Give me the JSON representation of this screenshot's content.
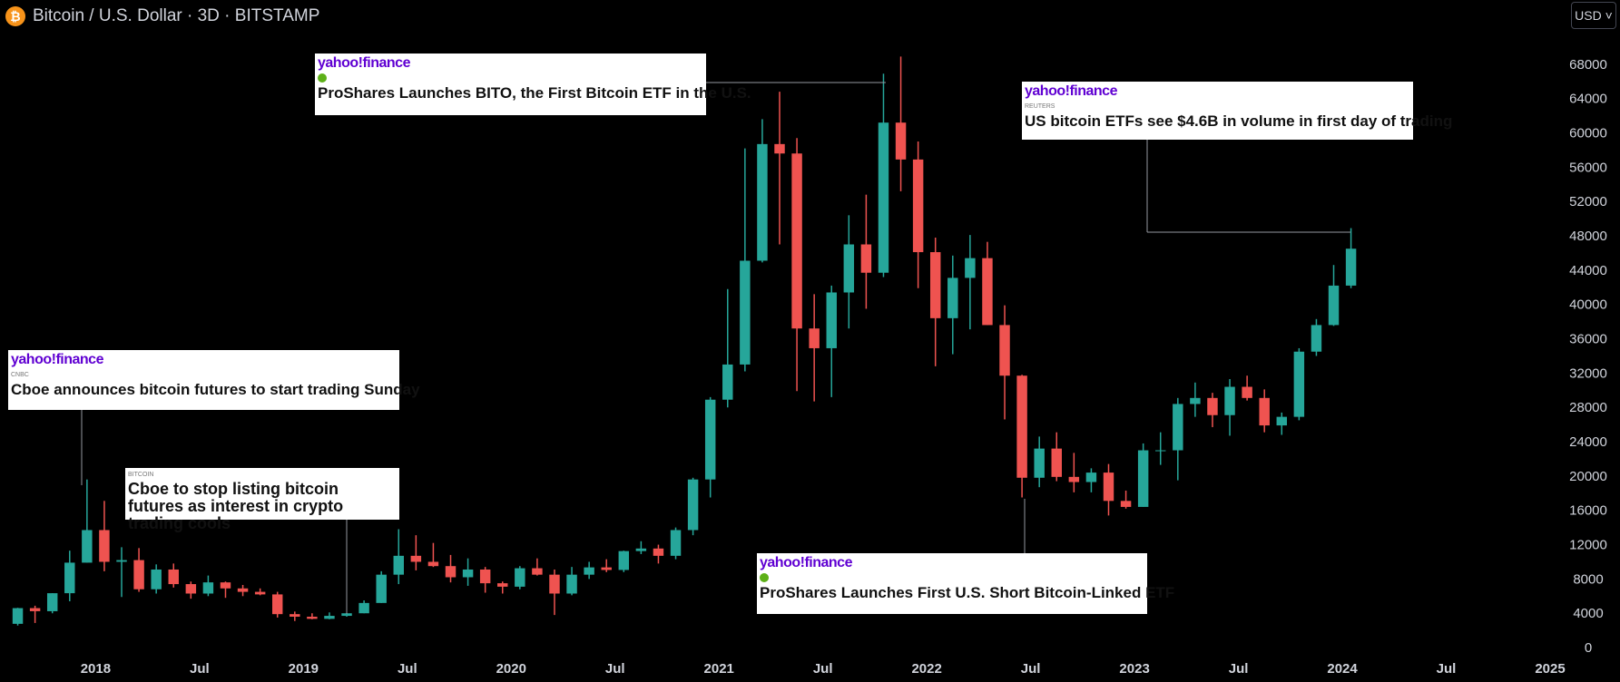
{
  "header": {
    "title": "Bitcoin / U.S. Dollar · 3D · BITSTAMP",
    "currency": "USD"
  },
  "chart_data": {
    "type": "candlestick",
    "x": [
      "2017-08",
      "2017-09",
      "2017-10",
      "2017-11",
      "2017-12",
      "2018-01",
      "2018-02",
      "2018-03",
      "2018-04",
      "2018-05",
      "2018-06",
      "2018-07",
      "2018-08",
      "2018-09",
      "2018-10",
      "2018-11",
      "2018-12",
      "2019-01",
      "2019-02",
      "2019-03",
      "2019-04",
      "2019-05",
      "2019-06",
      "2019-07",
      "2019-08",
      "2019-09",
      "2019-10",
      "2019-11",
      "2019-12",
      "2020-01",
      "2020-02",
      "2020-03",
      "2020-04",
      "2020-05",
      "2020-06",
      "2020-07",
      "2020-08",
      "2020-09",
      "2020-10",
      "2020-11",
      "2020-12",
      "2021-01",
      "2021-02",
      "2021-03",
      "2021-04",
      "2021-05",
      "2021-06",
      "2021-07",
      "2021-08",
      "2021-09",
      "2021-10",
      "2021-11",
      "2021-12",
      "2022-01",
      "2022-02",
      "2022-03",
      "2022-04",
      "2022-05",
      "2022-06",
      "2022-07",
      "2022-08",
      "2022-09",
      "2022-10",
      "2022-11",
      "2022-12",
      "2023-01",
      "2023-02",
      "2023-03",
      "2023-04",
      "2023-05",
      "2023-06",
      "2023-07",
      "2023-08",
      "2023-09",
      "2023-10",
      "2023-11",
      "2023-12",
      "2024-01"
    ],
    "open": [
      2870,
      4700,
      4340,
      6440,
      10000,
      13800,
      10100,
      10300,
      6900,
      9200,
      7500,
      6400,
      7700,
      7000,
      6600,
      6300,
      4000,
      3700,
      3450,
      3800,
      4100,
      5300,
      8600,
      10800,
      10100,
      9600,
      8300,
      9200,
      7600,
      7200,
      9350,
      8600,
      6400,
      8600,
      9450,
      9150,
      11350,
      11650,
      10800,
      13800,
      19700,
      29000,
      33100,
      45200,
      58800,
      57700,
      37300,
      35000,
      41500,
      47100,
      43800,
      61300,
      57000,
      46200,
      38500,
      43200,
      45500,
      37700,
      31800,
      19900,
      23300,
      20000,
      19400,
      20500,
      17200,
      16500,
      23100,
      23100,
      28500,
      29200,
      27200,
      30500,
      29200,
      26000,
      27000,
      34600,
      37700,
      42300
    ],
    "high": [
      4740,
      4980,
      6450,
      11400,
      19700,
      17200,
      11800,
      11700,
      9800,
      9900,
      7800,
      8500,
      7800,
      7400,
      7000,
      6600,
      4300,
      4100,
      4200,
      4100,
      5600,
      9000,
      13900,
      13200,
      12300,
      10900,
      10500,
      9500,
      7800,
      9600,
      10500,
      9200,
      9500,
      10100,
      10400,
      11400,
      12500,
      12100,
      14100,
      19900,
      29300,
      41900,
      58300,
      61700,
      64900,
      59500,
      41300,
      42300,
      50500,
      52900,
      67000,
      69000,
      59100,
      47900,
      45800,
      48200,
      47400,
      40000,
      31900,
      24700,
      25200,
      22800,
      21000,
      21500,
      18400,
      23900,
      25200,
      29200,
      31000,
      29800,
      31400,
      31800,
      30200,
      27500,
      35000,
      38400,
      44700,
      49000
    ],
    "low": [
      2670,
      2970,
      4100,
      5500,
      10000,
      9000,
      6000,
      6600,
      6400,
      7100,
      5800,
      6100,
      5900,
      6100,
      6200,
      3600,
      3200,
      3400,
      3400,
      3700,
      4100,
      5300,
      7500,
      9100,
      9500,
      7700,
      7300,
      6500,
      6400,
      6900,
      8500,
      3900,
      6200,
      8100,
      8900,
      8900,
      11000,
      9900,
      10400,
      13200,
      17600,
      28100,
      32300,
      45000,
      47100,
      30000,
      28800,
      29300,
      37300,
      39600,
      43300,
      53300,
      42000,
      32900,
      34300,
      37200,
      37700,
      26700,
      17600,
      18800,
      19500,
      18200,
      18200,
      15500,
      16300,
      16500,
      21400,
      19600,
      27000,
      25800,
      24800,
      28900,
      25200,
      24900,
      26600,
      34100,
      37600,
      42000
    ],
    "close": [
      4700,
      4340,
      6440,
      10000,
      13800,
      10100,
      10300,
      6900,
      9200,
      7500,
      6400,
      7700,
      7000,
      6600,
      6300,
      4000,
      3700,
      3450,
      3800,
      4100,
      5300,
      8600,
      10800,
      10100,
      9600,
      8300,
      9200,
      7600,
      7200,
      9350,
      8600,
      6400,
      8600,
      9450,
      9150,
      11350,
      11650,
      10800,
      13800,
      19700,
      29000,
      33100,
      45200,
      58800,
      57700,
      37300,
      35000,
      41500,
      47100,
      43800,
      61300,
      57000,
      46200,
      38500,
      43200,
      45500,
      37700,
      31800,
      19900,
      23300,
      20000,
      19400,
      20500,
      17200,
      16500,
      23100,
      23100,
      28500,
      29200,
      27200,
      30500,
      29200,
      26000,
      27000,
      34600,
      37700,
      42300,
      46600
    ],
    "up_color": "#26a69a",
    "down_color": "#ef5350",
    "xlim": [
      "2017-08",
      "2025-01"
    ],
    "xticks": [
      {
        "value": "2018-01",
        "label": "2018"
      },
      {
        "value": "2018-07",
        "label": "Jul"
      },
      {
        "value": "2019-01",
        "label": "2019"
      },
      {
        "value": "2019-07",
        "label": "Jul"
      },
      {
        "value": "2020-01",
        "label": "2020"
      },
      {
        "value": "2020-07",
        "label": "Jul"
      },
      {
        "value": "2021-01",
        "label": "2021"
      },
      {
        "value": "2021-07",
        "label": "Jul"
      },
      {
        "value": "2022-01",
        "label": "2022"
      },
      {
        "value": "2022-07",
        "label": "Jul"
      },
      {
        "value": "2023-01",
        "label": "2023"
      },
      {
        "value": "2023-07",
        "label": "Jul"
      },
      {
        "value": "2024-01",
        "label": "2024"
      },
      {
        "value": "2024-07",
        "label": "Jul"
      },
      {
        "value": "2025-01",
        "label": "2025"
      }
    ],
    "ylim": [
      0,
      72000
    ],
    "yticks": [
      0,
      4000,
      8000,
      12000,
      16000,
      20000,
      24000,
      28000,
      32000,
      36000,
      40000,
      44000,
      48000,
      52000,
      56000,
      60000,
      64000,
      68000
    ],
    "grid": false,
    "annotation_brand": "yahoo!finance",
    "annotations": [
      {
        "source": "CNBC",
        "headline": "Cboe announces bitcoin futures to start trading Sunday"
      },
      {
        "source": "BITCOIN",
        "headline": "Cboe to stop listing bitcoin futures as interest in crypto trading cools"
      },
      {
        "headline": "ProShares Launches BITO, the First Bitcoin ETF in the U.S."
      },
      {
        "headline": "ProShares Launches First U.S. Short Bitcoin-Linked ETF"
      },
      {
        "source": "REUTERS",
        "headline": "US bitcoin ETFs see $4.6B in volume in first day of trading"
      }
    ]
  }
}
